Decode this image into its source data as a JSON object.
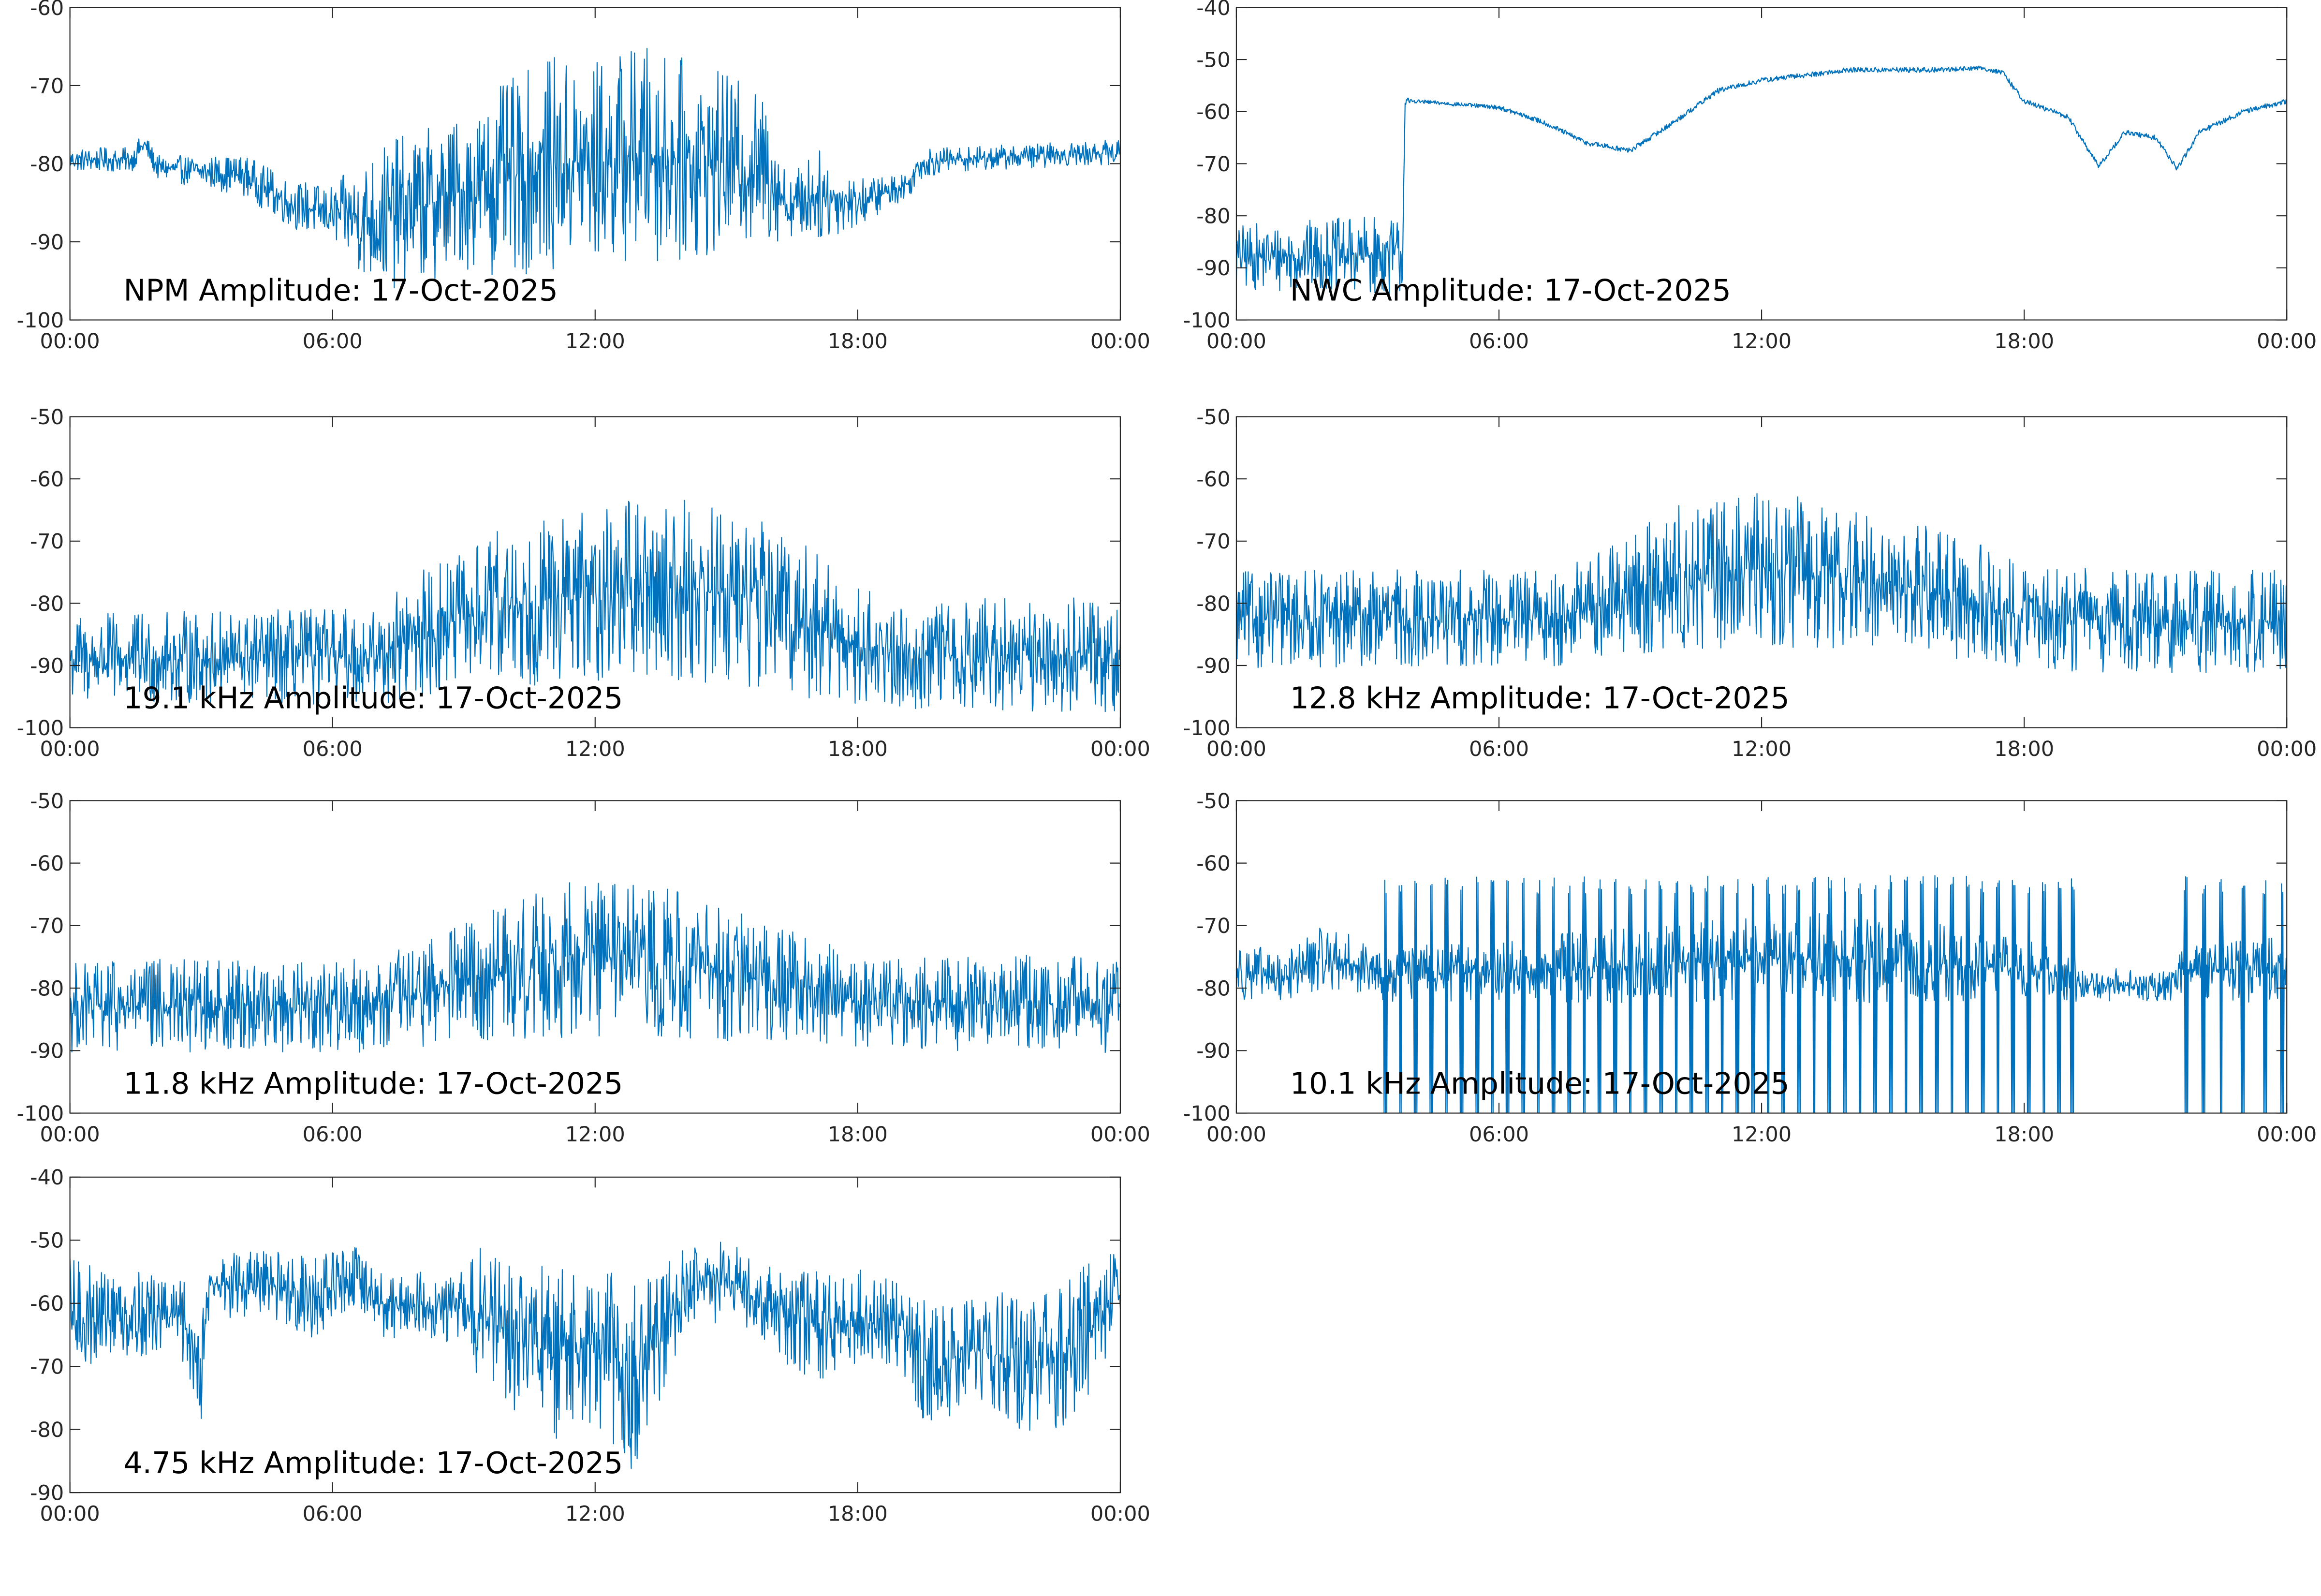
{
  "chart_data": [
    {
      "type": "line",
      "title": "NPM Amplitude: 17-Oct-2025",
      "ylim": [
        -100,
        -60
      ],
      "yticks": [
        "-60",
        "-70",
        "-80",
        "-90",
        "-100"
      ],
      "ytick_values": [
        -60,
        -70,
        -80,
        -90,
        -100
      ],
      "xlim_hours": [
        0,
        24
      ],
      "xticks": [
        "00:00",
        "06:00",
        "12:00",
        "18:00",
        "00:00"
      ],
      "xtick_hours": [
        0,
        6,
        12,
        18,
        24
      ],
      "color": "#0072bd",
      "envelope": [
        [
          0,
          -81,
          -78
        ],
        [
          1.4,
          -81,
          -78
        ],
        [
          1.7,
          -79,
          -76
        ],
        [
          2,
          -82,
          -79
        ],
        [
          4,
          -84,
          -79
        ],
        [
          5,
          -88,
          -82
        ],
        [
          6,
          -90,
          -83
        ],
        [
          7,
          -96,
          -78
        ],
        [
          8,
          -95,
          -76
        ],
        [
          9,
          -93,
          -74
        ],
        [
          10,
          -94,
          -70
        ],
        [
          11,
          -93,
          -67
        ],
        [
          12,
          -93,
          -67
        ],
        [
          13,
          -92,
          -65
        ],
        [
          14,
          -92,
          -67
        ],
        [
          15,
          -91,
          -69
        ],
        [
          16,
          -90,
          -72
        ],
        [
          16.4,
          -89,
          -82
        ],
        [
          17,
          -90,
          -78
        ],
        [
          18,
          -88,
          -82
        ],
        [
          19.2,
          -84,
          -81
        ],
        [
          19.4,
          -82,
          -78
        ],
        [
          20,
          -81,
          -78
        ],
        [
          24,
          -80,
          -77
        ]
      ]
    },
    {
      "type": "line",
      "title": "NWC Amplitude: 17-Oct-2025",
      "ylim": [
        -100,
        -40
      ],
      "yticks": [
        "-40",
        "-50",
        "-60",
        "-70",
        "-80",
        "-90",
        "-100"
      ],
      "ytick_values": [
        -40,
        -50,
        -60,
        -70,
        -80,
        -90,
        -100
      ],
      "xlim_hours": [
        0,
        24
      ],
      "xticks": [
        "00:00",
        "06:00",
        "12:00",
        "18:00",
        "00:00"
      ],
      "xtick_hours": [
        0,
        6,
        12,
        18,
        24
      ],
      "color": "#0072bd",
      "envelope": [
        [
          0,
          -94,
          -82
        ],
        [
          3.8,
          -95,
          -80
        ],
        [
          3.85,
          -60,
          -57
        ],
        [
          4,
          -58.3,
          -57.6
        ],
        [
          6,
          -59.6,
          -58.8
        ],
        [
          7,
          -62.5,
          -61.5
        ],
        [
          8,
          -66.5,
          -65.5
        ],
        [
          9,
          -68,
          -67
        ],
        [
          10,
          -62.5,
          -61.5
        ],
        [
          11,
          -56.5,
          -55.5
        ],
        [
          12,
          -54.5,
          -53.5
        ],
        [
          13,
          -53.5,
          -52.5
        ],
        [
          14,
          -52.5,
          -51.5
        ],
        [
          15,
          -52.5,
          -51.5
        ],
        [
          16,
          -52.5,
          -51.5
        ],
        [
          17,
          -52,
          -51.2
        ],
        [
          17.5,
          -53,
          -52
        ],
        [
          18,
          -58.5,
          -57.5
        ],
        [
          19,
          -61.5,
          -60.5
        ],
        [
          19.7,
          -71,
          -70
        ],
        [
          20.3,
          -64.5,
          -63.5
        ],
        [
          21,
          -65.5,
          -64.5
        ],
        [
          21.5,
          -71.5,
          -70.5
        ],
        [
          22,
          -64.5,
          -63.5
        ],
        [
          23,
          -60.5,
          -59.5
        ],
        [
          24,
          -58.5,
          -57.5
        ]
      ]
    },
    {
      "type": "line",
      "title": "19.1 kHz Amplitude: 17-Oct-2025",
      "ylim": [
        -100,
        -50
      ],
      "yticks": [
        "-50",
        "-60",
        "-70",
        "-80",
        "-90",
        "-100"
      ],
      "ytick_values": [
        -50,
        -60,
        -70,
        -80,
        -90,
        -100
      ],
      "xlim_hours": [
        0,
        24
      ],
      "xticks": [
        "00:00",
        "06:00",
        "12:00",
        "18:00",
        "00:00"
      ],
      "xtick_hours": [
        0,
        6,
        12,
        18,
        24
      ],
      "color": "#0072bd",
      "envelope": [
        [
          0,
          -96,
          -82
        ],
        [
          7,
          -96,
          -81
        ],
        [
          8,
          -95,
          -75
        ],
        [
          9,
          -93,
          -72
        ],
        [
          10,
          -93,
          -68
        ],
        [
          12,
          -92,
          -65
        ],
        [
          14,
          -92,
          -63
        ],
        [
          16,
          -93,
          -67
        ],
        [
          17,
          -95,
          -72
        ],
        [
          18,
          -96,
          -78
        ],
        [
          19,
          -97,
          -80
        ],
        [
          24,
          -97,
          -79
        ]
      ]
    },
    {
      "type": "line",
      "title": "12.8 kHz Amplitude: 17-Oct-2025",
      "ylim": [
        -100,
        -50
      ],
      "yticks": [
        "-50",
        "-60",
        "-70",
        "-80",
        "-90",
        "-100"
      ],
      "ytick_values": [
        -50,
        -60,
        -70,
        -80,
        -90,
        -100
      ],
      "xlim_hours": [
        0,
        24
      ],
      "xticks": [
        "00:00",
        "06:00",
        "12:00",
        "18:00",
        "00:00"
      ],
      "xtick_hours": [
        0,
        6,
        12,
        18,
        24
      ],
      "color": "#0072bd",
      "envelope": [
        [
          0,
          -90,
          -75
        ],
        [
          7,
          -90,
          -75
        ],
        [
          8,
          -89,
          -73
        ],
        [
          10,
          -88,
          -65
        ],
        [
          12,
          -87,
          -62
        ],
        [
          14,
          -87,
          -65
        ],
        [
          16,
          -88,
          -68
        ],
        [
          18,
          -90,
          -74
        ],
        [
          20,
          -91,
          -75
        ],
        [
          24,
          -91,
          -75
        ]
      ]
    },
    {
      "type": "line",
      "title": "11.8 kHz Amplitude: 17-Oct-2025",
      "ylim": [
        -100,
        -50
      ],
      "yticks": [
        "-50",
        "-60",
        "-70",
        "-80",
        "-90",
        "-100"
      ],
      "ytick_values": [
        -50,
        -60,
        -70,
        -80,
        -90,
        -100
      ],
      "xlim_hours": [
        0,
        24
      ],
      "xticks": [
        "00:00",
        "06:00",
        "12:00",
        "18:00",
        "00:00"
      ],
      "xtick_hours": [
        0,
        6,
        12,
        18,
        24
      ],
      "color": "#0072bd",
      "envelope": [
        [
          0,
          -90,
          -76
        ],
        [
          7,
          -90,
          -75
        ],
        [
          8,
          -89,
          -73
        ],
        [
          10,
          -88,
          -66
        ],
        [
          12,
          -87,
          -62
        ],
        [
          14,
          -88,
          -65
        ],
        [
          16,
          -88,
          -70
        ],
        [
          18,
          -89,
          -75
        ],
        [
          20,
          -90,
          -75
        ],
        [
          24,
          -90,
          -75
        ]
      ]
    },
    {
      "type": "line",
      "title": "10.1 kHz Amplitude: 17-Oct-2025",
      "ylim": [
        -100,
        -50
      ],
      "yticks": [
        "-50",
        "-60",
        "-70",
        "-80",
        "-90",
        "-100"
      ],
      "ytick_values": [
        -50,
        -60,
        -70,
        -80,
        -90,
        -100
      ],
      "xlim_hours": [
        0,
        24
      ],
      "xticks": [
        "00:00",
        "06:00",
        "12:00",
        "18:00",
        "00:00"
      ],
      "xtick_hours": [
        0,
        6,
        12,
        18,
        24
      ],
      "color": "#0072bd",
      "envelope": [
        [
          0,
          -82,
          -72
        ],
        [
          1,
          -82,
          -75
        ],
        [
          2,
          -80,
          -70
        ],
        [
          2.8,
          -81,
          -72
        ],
        [
          3.2,
          -82,
          -74
        ],
        [
          10,
          -82,
          -70
        ],
        [
          13,
          -82,
          -68
        ],
        [
          16,
          -82,
          -70
        ],
        [
          19.2,
          -82,
          -74
        ],
        [
          19.3,
          -82,
          -77
        ],
        [
          21.5,
          -82,
          -77
        ],
        [
          21.6,
          -82,
          -72
        ],
        [
          24,
          -82,
          -72
        ]
      ],
      "spike_hours": [
        3.4,
        3.75,
        4.1,
        4.45,
        4.8,
        5.15,
        5.5,
        5.85,
        6.2,
        6.55,
        6.9,
        7.25,
        7.6,
        7.95,
        8.3,
        8.65,
        9.0,
        9.35,
        9.7,
        10.05,
        10.4,
        10.75,
        11.1,
        11.45,
        11.8,
        12.15,
        12.5,
        12.85,
        13.2,
        13.55,
        13.9,
        14.25,
        14.6,
        14.95,
        15.3,
        15.65,
        16.0,
        16.35,
        16.7,
        17.05,
        17.4,
        17.75,
        18.1,
        18.45,
        18.8,
        19.1,
        21.7,
        22.1,
        22.5,
        23.0,
        23.5,
        23.9
      ],
      "spike_range": [
        -100,
        -62
      ]
    },
    {
      "type": "line",
      "title": "4.75 kHz Amplitude: 17-Oct-2025",
      "ylim": [
        -90,
        -40
      ],
      "yticks": [
        "-40",
        "-50",
        "-60",
        "-70",
        "-80",
        "-90"
      ],
      "ytick_values": [
        -40,
        -50,
        -60,
        -70,
        -80,
        -90
      ],
      "xlim_hours": [
        0,
        24
      ],
      "xticks": [
        "00:00",
        "06:00",
        "12:00",
        "18:00",
        "00:00"
      ],
      "xtick_hours": [
        0,
        6,
        12,
        18,
        24
      ],
      "color": "#0072bd",
      "envelope": [
        [
          0,
          -72,
          -53
        ],
        [
          1,
          -68,
          -55
        ],
        [
          2.5,
          -68,
          -56
        ],
        [
          2.8,
          -75,
          -58
        ],
        [
          3,
          -78,
          -60
        ],
        [
          3.2,
          -62,
          -52
        ],
        [
          5,
          -63,
          -52
        ],
        [
          5.5,
          -66,
          -53
        ],
        [
          6.5,
          -60,
          -51
        ],
        [
          7,
          -65,
          -55
        ],
        [
          9,
          -66,
          -55
        ],
        [
          9.5,
          -75,
          -49
        ],
        [
          10,
          -77,
          -53
        ],
        [
          10.5,
          -75,
          -54
        ],
        [
          11,
          -82,
          -55
        ],
        [
          12,
          -80,
          -55
        ],
        [
          12.5,
          -82,
          -56
        ],
        [
          13,
          -88,
          -57
        ],
        [
          13.5,
          -75,
          -55
        ],
        [
          14,
          -66,
          -52
        ],
        [
          15,
          -62,
          -50
        ],
        [
          16,
          -68,
          -54
        ],
        [
          17,
          -72,
          -55
        ],
        [
          18,
          -70,
          -55
        ],
        [
          19,
          -70,
          -57
        ],
        [
          19.5,
          -78,
          -60
        ],
        [
          20,
          -79,
          -60
        ],
        [
          20.5,
          -75,
          -60
        ],
        [
          21,
          -78,
          -58
        ],
        [
          22,
          -80,
          -60
        ],
        [
          23,
          -79,
          -55
        ],
        [
          23.5,
          -70,
          -53
        ],
        [
          24,
          -65,
          -52
        ]
      ]
    }
  ]
}
